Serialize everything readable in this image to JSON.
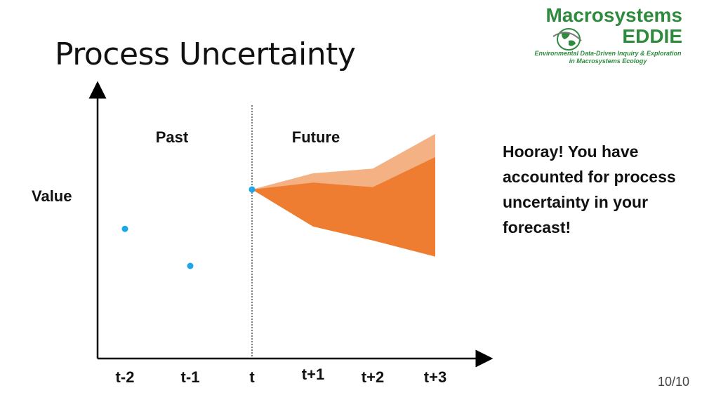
{
  "slide": {
    "title": "Process Uncertainty",
    "page_number": "10/10",
    "side_text": "Hooray! You have accounted for process uncertainty in your forecast!"
  },
  "logo": {
    "title": "Macrosystems",
    "subtitle": "EDDIE",
    "tagline_1": "Environmental Data-Driven Inquiry & Exploration",
    "tagline_2": "in Macrosystems Ecology",
    "color": "#2e8b3e",
    "icon": "globe-icon"
  },
  "colors": {
    "point": "#1ea7e8",
    "inner_band": "#ee7d31",
    "outer_band": "#f4b183",
    "axis": "#000000"
  },
  "chart_data": {
    "type": "scatter",
    "title": "",
    "xlabel": "",
    "ylabel": "Value",
    "categories": [
      "t-2",
      "t-1",
      "t",
      "t+1",
      "t+2",
      "t+3"
    ],
    "region_labels": {
      "past": "Past",
      "future": "Future"
    },
    "divider_at": "t",
    "ylim": [
      0,
      100
    ],
    "grid": false,
    "series": [
      {
        "kind": "points",
        "x": [
          "t-2",
          "t-1",
          "t"
        ],
        "y": [
          56,
          40,
          73
        ]
      },
      {
        "kind": "band",
        "x": [
          "t",
          "t+1",
          "t+2",
          "t+3"
        ],
        "lower": [
          73,
          57,
          51,
          44
        ],
        "upper": [
          73,
          76,
          74,
          87
        ]
      },
      {
        "kind": "band",
        "x": [
          "t",
          "t+1",
          "t+2",
          "t+3"
        ],
        "lower": [
          73,
          63,
          58,
          53
        ],
        "upper": [
          73,
          80,
          82,
          97
        ]
      }
    ]
  }
}
